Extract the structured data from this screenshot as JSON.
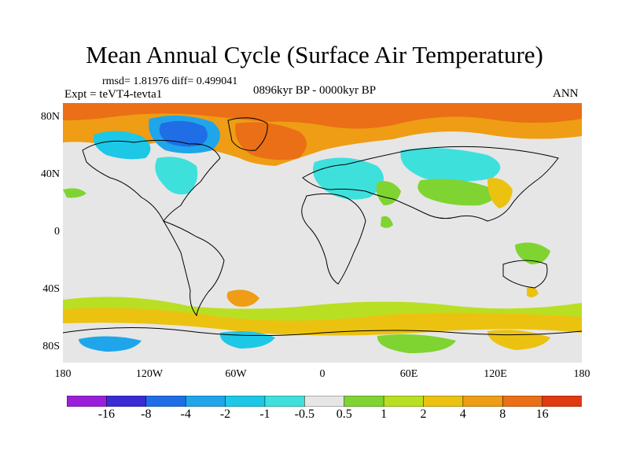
{
  "title": "Mean Annual Cycle (Surface Air Temperature)",
  "stats_text": "rmsd= 1.81976 diff= 0.499041",
  "experiment_text": "Expt = teVT4-tevta1",
  "period_text": "0896kyr BP - 0000kyr BP",
  "season_text": "ANN",
  "lat_labels": [
    "80N",
    "40N",
    "0",
    "40S",
    "80S"
  ],
  "lon_labels": [
    "180",
    "120W",
    "60W",
    "0",
    "60E",
    "120E",
    "180"
  ],
  "colorbar": {
    "labels": [
      "-16",
      "-8",
      "-4",
      "-2",
      "-1",
      "-0.5",
      "0.5",
      "1",
      "2",
      "4",
      "8",
      "16"
    ],
    "colors": [
      "#9b1fd9",
      "#3a2bd6",
      "#1f6ee6",
      "#1fa6ea",
      "#1cc8e6",
      "#3ee0dc",
      "#e6e6e6",
      "#7fd431",
      "#b9df23",
      "#ecc211",
      "#ee9d14",
      "#ea6f16",
      "#e03a10"
    ]
  },
  "map_colors": {
    "background": "#e6e6e6",
    "coastline": "#000000"
  }
}
